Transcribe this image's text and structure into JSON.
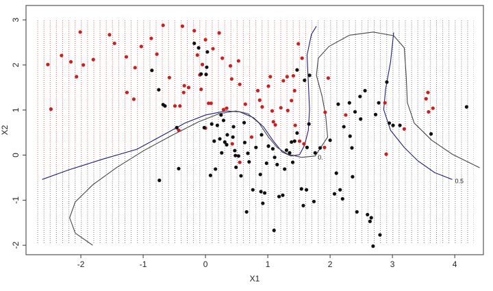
{
  "chart_data": {
    "type": "scatter",
    "x_label": "X1",
    "y_label": "X2",
    "xlim": [
      -2.88,
      4.46
    ],
    "ylim": [
      -2.21,
      3.32
    ],
    "xticks": [
      -2,
      -1,
      0,
      1,
      2,
      3,
      4
    ],
    "yticks": [
      -2,
      -1,
      0,
      1,
      2,
      3
    ],
    "series": [
      {
        "color": "#cc2020",
        "x": [
          -2.53,
          -2.48,
          -2.31,
          -2.16,
          -2.07,
          -2.01,
          -1.96,
          -1.8,
          -1.54,
          -1.46,
          -1.27,
          -1.26,
          -1.15,
          -1.13,
          -1.03,
          -0.87,
          -0.78,
          -0.68,
          -0.58,
          -0.49,
          -0.41,
          -0.37,
          -0.35,
          -0.34,
          -0.27,
          -0.18,
          -0.13,
          -0.09,
          -0.07,
          -0.05,
          0.0,
          0.05,
          0.09,
          0.12,
          0.22,
          0.27,
          0.29,
          0.34,
          0.4,
          0.42,
          0.55,
          0.53,
          0.64,
          0.74,
          0.84,
          0.87,
          0.91,
          1.01,
          1.04,
          1.07,
          1.09,
          1.12,
          1.21,
          1.25,
          1.31,
          1.32,
          1.38,
          1.41,
          1.43,
          1.44,
          1.49,
          1.51,
          1.55,
          1.58,
          1.91,
          1.92,
          1.97,
          2.25,
          2.88,
          2.9,
          3.19,
          3.54,
          3.57,
          3.58,
          3.65,
          0.55,
          0.0,
          0.43,
          -0.43
        ],
        "y": [
          2.01,
          1.02,
          2.21,
          2.07,
          1.74,
          2.73,
          2.0,
          2.12,
          2.67,
          2.48,
          2.18,
          1.39,
          1.24,
          1.94,
          2.41,
          2.59,
          2.24,
          2.88,
          1.72,
          1.09,
          1.09,
          2.86,
          1.39,
          1.54,
          1.5,
          2.76,
          2.22,
          1.78,
          1.46,
          2.01,
          2.56,
          1.15,
          1.15,
          2.36,
          2.71,
          2.15,
          1.01,
          1.04,
          1.98,
          1.69,
          1.57,
          2.09,
          1.13,
          0.4,
          1.43,
          1.22,
          1.07,
          1.53,
          1.74,
          0.98,
          0.74,
          0.67,
          1.05,
          1.65,
          1.74,
          0.99,
          1.21,
          1.76,
          1.43,
          0.66,
          2.47,
          0.31,
          2.15,
          0.25,
          0.17,
          0.95,
          1.71,
          0.89,
          1.16,
          0.02,
          0.58,
          1.25,
          1.39,
          0.96,
          1.04,
          -0.16,
          0.6,
          0.25,
          0.55
        ]
      },
      {
        "color": "#111111",
        "x": [
          -0.86,
          -0.75,
          -0.68,
          -0.65,
          -0.74,
          -0.46,
          -0.43,
          -0.18,
          -0.11,
          -0.07,
          -0.02,
          0.01,
          0.02,
          0.03,
          0.08,
          0.1,
          0.14,
          0.16,
          0.19,
          0.23,
          0.25,
          0.26,
          0.29,
          0.31,
          0.34,
          0.35,
          0.44,
          0.45,
          0.47,
          0.48,
          0.49,
          0.53,
          0.57,
          0.62,
          0.63,
          0.66,
          0.68,
          0.7,
          0.76,
          0.81,
          0.88,
          0.89,
          0.9,
          0.92,
          0.95,
          0.98,
          1.01,
          1.08,
          1.1,
          1.11,
          1.15,
          1.18,
          1.24,
          1.27,
          1.3,
          1.35,
          1.38,
          1.4,
          1.43,
          1.47,
          1.47,
          1.54,
          1.57,
          1.59,
          1.62,
          1.63,
          1.66,
          1.67,
          1.74,
          1.76,
          1.84,
          2.0,
          2.07,
          2.1,
          2.13,
          2.16,
          2.2,
          2.22,
          2.31,
          2.32,
          2.35,
          2.36,
          2.4,
          2.43,
          2.48,
          2.49,
          2.56,
          2.6,
          2.64,
          2.66,
          2.69,
          2.73,
          2.78,
          2.8,
          2.91,
          2.95,
          3.01,
          3.12,
          3.62,
          4.19
        ],
        "y": [
          1.88,
          1.45,
          1.12,
          1.09,
          -0.56,
          0.61,
          -0.3,
          2.48,
          2.38,
          1.8,
          0.61,
          1.79,
          1.95,
          2.29,
          -0.45,
          0.69,
          0.31,
          -0.31,
          0.66,
          0.36,
          0.89,
          0.05,
          0.77,
          0.29,
          0.23,
          0.45,
          0.4,
          0.63,
          0.1,
          -0.01,
          -0.27,
          -0.02,
          -0.46,
          0.72,
          0.28,
          -1.26,
          0.04,
          -0.15,
          -0.77,
          0.17,
          -0.43,
          -0.81,
          0.45,
          -1.07,
          -0.84,
          -0.18,
          0.2,
          0.14,
          -1.67,
          -0.05,
          -0.21,
          -0.92,
          -0.89,
          -0.31,
          0.11,
          0.05,
          0.29,
          -0.16,
          0.31,
          1.89,
          0.49,
          -0.75,
          -1.12,
          1.66,
          -0.77,
          0.17,
          0.69,
          1.77,
          -1.03,
          0.05,
          0.16,
          0.33,
          -0.86,
          -0.4,
          1.13,
          -0.77,
          -0.97,
          0.63,
          1.16,
          0.42,
          0.16,
          -0.48,
          0.96,
          -1.26,
          1.3,
          0.8,
          1.43,
          -1.32,
          -1.47,
          -1.39,
          -2.02,
          0.9,
          1.16,
          -1.77,
          1.62,
          0.71,
          0.66,
          0.66,
          0.47,
          1.07
        ]
      }
    ],
    "curves": [
      {
        "color": "#1c1c7c",
        "label": "0.5",
        "x": [
          -2.62,
          -2.2,
          -1.65,
          -1.1,
          -0.66,
          -0.33,
          0.0,
          0.33,
          0.55,
          0.77,
          0.93,
          1.08,
          1.23,
          1.37,
          1.51,
          1.59,
          1.65,
          1.67,
          1.65,
          1.63,
          1.7,
          1.78,
          null,
          3.02,
          2.97,
          2.89,
          2.86,
          2.97,
          3.19,
          3.41,
          3.68,
          3.96
        ],
        "y": [
          -0.54,
          -0.33,
          -0.09,
          0.13,
          0.46,
          0.71,
          0.89,
          0.98,
          0.96,
          0.83,
          0.63,
          0.33,
          0.07,
          -0.02,
          0.01,
          0.22,
          0.55,
          1.01,
          1.62,
          2.22,
          2.68,
          2.86,
          null,
          2.72,
          2.07,
          1.46,
          1.01,
          0.55,
          0.17,
          -0.13,
          -0.39,
          -0.54
        ]
      },
      {
        "color": "#444444",
        "label": "0.",
        "x": [
          -1.81,
          -2.09,
          -2.18,
          -2.09,
          -1.81,
          -1.43,
          -0.99,
          -0.55,
          -0.11,
          0.22,
          0.49,
          0.68,
          0.86,
          1.01,
          1.15,
          1.32,
          1.54,
          1.76,
          1.96,
          1.93,
          1.87,
          1.78,
          1.81,
          1.98,
          2.31,
          2.69,
          3.02,
          3.19,
          3.22,
          3.24,
          3.35,
          3.63,
          3.96,
          4.4
        ],
        "y": [
          -2.0,
          -1.73,
          -1.39,
          -1.04,
          -0.66,
          -0.28,
          0.1,
          0.43,
          0.74,
          0.92,
          0.98,
          0.92,
          0.71,
          0.4,
          0.17,
          0.02,
          -0.05,
          -0.02,
          0.4,
          0.86,
          1.31,
          1.77,
          2.15,
          2.41,
          2.66,
          2.73,
          2.65,
          2.38,
          1.77,
          1.16,
          0.71,
          0.33,
          0.02,
          -0.28
        ]
      }
    ]
  }
}
